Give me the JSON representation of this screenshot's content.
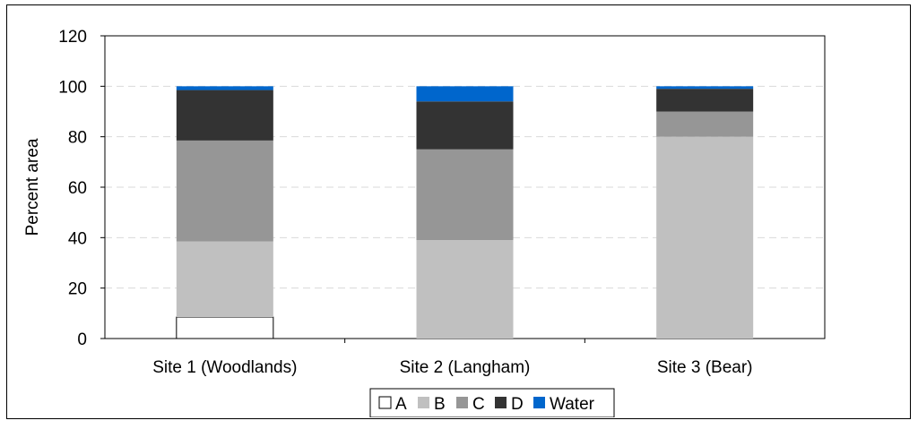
{
  "chart_data": {
    "type": "bar",
    "stacked": true,
    "categories": [
      "Site 1 (Woodlands)",
      "Site 2 (Langham)",
      "Site 3 (Bear)"
    ],
    "series": [
      {
        "name": "A",
        "values": [
          8.5,
          0,
          0
        ],
        "color": "#ffffff"
      },
      {
        "name": "B",
        "values": [
          30,
          39,
          80
        ],
        "color": "#c0c0c0"
      },
      {
        "name": "C",
        "values": [
          40,
          36,
          10
        ],
        "color": "#969696"
      },
      {
        "name": "D",
        "values": [
          20,
          19,
          9
        ],
        "color": "#333333"
      },
      {
        "name": "Water",
        "values": [
          1.5,
          6,
          1
        ],
        "color": "#0066cc"
      }
    ],
    "ylabel": "Percent area",
    "xlabel": "",
    "ylim": [
      0,
      120
    ],
    "yticks": [
      0,
      20,
      40,
      60,
      80,
      100,
      120
    ],
    "grid": true,
    "legend_position": "bottom"
  }
}
